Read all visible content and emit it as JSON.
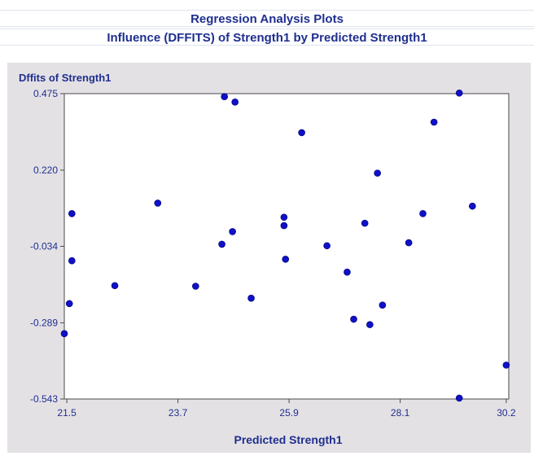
{
  "header": {
    "title": "Regression Analysis Plots",
    "subtitle": "Influence (DFFITS) of Strength1 by Predicted Strength1"
  },
  "colors": {
    "text": "#1f2f8f",
    "marker": "#0f10c8",
    "panel_bg": "#e4e1e5",
    "plot_bg": "#ffffff"
  },
  "chart_data": {
    "type": "scatter",
    "title": "Influence (DFFITS) of Strength1 by Predicted Strength1",
    "xlabel": "Predicted Strength1",
    "ylabel": "Dffits of Strength1",
    "xlim": [
      21.45,
      30.25
    ],
    "ylim": [
      -0.543,
      0.475
    ],
    "xticks": [
      21.5,
      23.7,
      25.9,
      28.1,
      30.2
    ],
    "xtick_labels": [
      "21.5",
      "23.7",
      "25.9",
      "28.1",
      "30.2"
    ],
    "yticks": [
      0.475,
      0.22,
      -0.034,
      -0.289,
      -0.543
    ],
    "ytick_labels": [
      "0.475",
      "0.220",
      "-0.034",
      "-0.289",
      "-0.543"
    ],
    "grid": false,
    "points": [
      {
        "x": 21.45,
        "y": -0.325
      },
      {
        "x": 21.55,
        "y": -0.225
      },
      {
        "x": 21.6,
        "y": -0.082
      },
      {
        "x": 21.6,
        "y": 0.075
      },
      {
        "x": 22.45,
        "y": -0.165
      },
      {
        "x": 23.3,
        "y": 0.11
      },
      {
        "x": 24.05,
        "y": -0.167
      },
      {
        "x": 24.57,
        "y": -0.027
      },
      {
        "x": 24.62,
        "y": 0.465
      },
      {
        "x": 24.78,
        "y": 0.015
      },
      {
        "x": 24.83,
        "y": 0.447
      },
      {
        "x": 25.15,
        "y": -0.207
      },
      {
        "x": 25.8,
        "y": 0.035
      },
      {
        "x": 25.8,
        "y": 0.063
      },
      {
        "x": 25.83,
        "y": -0.077
      },
      {
        "x": 26.15,
        "y": 0.345
      },
      {
        "x": 26.65,
        "y": -0.032
      },
      {
        "x": 27.05,
        "y": -0.12
      },
      {
        "x": 27.18,
        "y": -0.277
      },
      {
        "x": 27.4,
        "y": 0.043
      },
      {
        "x": 27.5,
        "y": -0.295
      },
      {
        "x": 27.65,
        "y": 0.21
      },
      {
        "x": 27.75,
        "y": -0.23
      },
      {
        "x": 28.27,
        "y": -0.022
      },
      {
        "x": 28.55,
        "y": 0.075
      },
      {
        "x": 28.77,
        "y": 0.38
      },
      {
        "x": 29.27,
        "y": 0.477
      },
      {
        "x": 29.27,
        "y": -0.54
      },
      {
        "x": 29.53,
        "y": 0.1
      },
      {
        "x": 30.2,
        "y": -0.43
      }
    ]
  }
}
